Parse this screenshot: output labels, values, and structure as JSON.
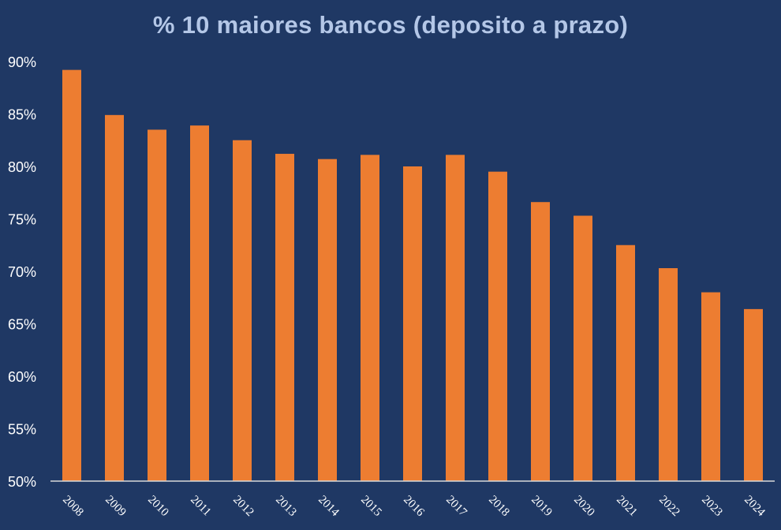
{
  "chart_data": {
    "type": "bar",
    "title": "% 10 maiores bancos (deposito a prazo)",
    "xlabel": "",
    "ylabel": "",
    "categories": [
      "2008",
      "2009",
      "2010",
      "2011",
      "2012",
      "2013",
      "2014",
      "2015",
      "2016",
      "2017",
      "2018",
      "2019",
      "2020",
      "2021",
      "2022",
      "2023",
      "2024"
    ],
    "values": [
      89.2,
      84.9,
      83.5,
      83.9,
      82.5,
      81.2,
      80.7,
      81.1,
      80.0,
      81.1,
      79.5,
      76.6,
      75.3,
      72.5,
      70.3,
      68.0,
      66.4
    ],
    "ylim": [
      50,
      90
    ],
    "yticks": [
      "50%",
      "55%",
      "60%",
      "65%",
      "70%",
      "75%",
      "80%",
      "85%",
      "90%"
    ],
    "grid": false,
    "legend": "none",
    "colors": {
      "background": "#1f3864",
      "bar": "#ed7d31",
      "title": "#b4c7e7",
      "axis": "#d9d9d9",
      "text": "#ffffff"
    }
  }
}
